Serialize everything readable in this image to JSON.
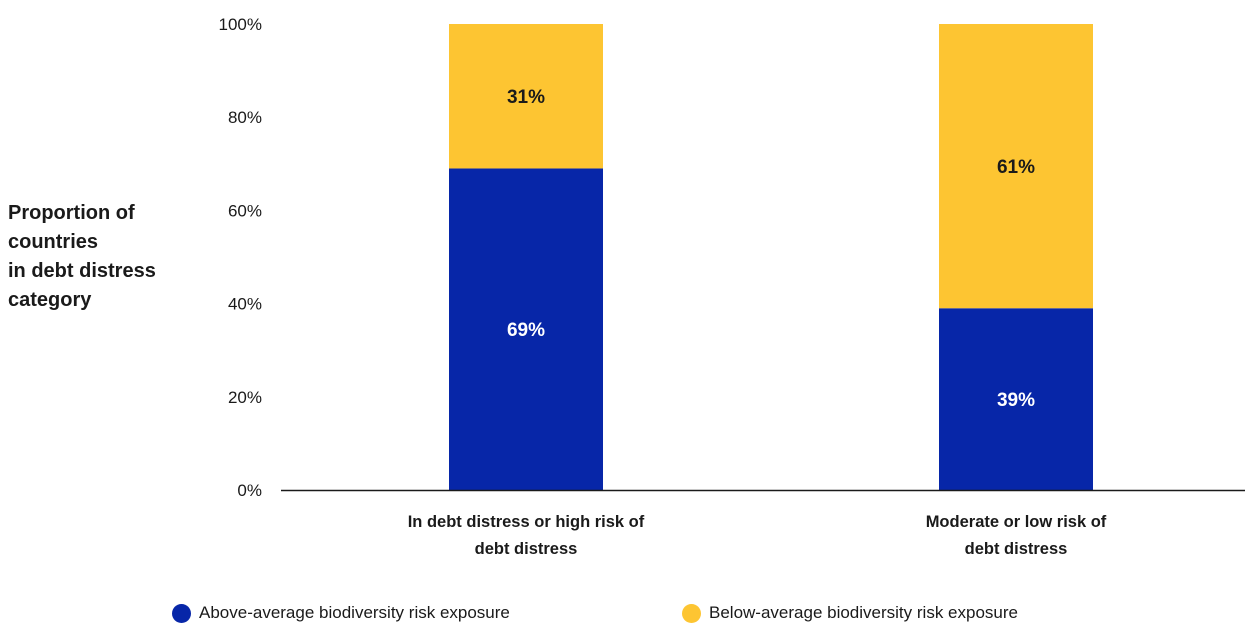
{
  "chart_data": {
    "type": "bar",
    "stacked": true,
    "categories": [
      [
        "In debt distress or high risk of",
        "debt distress"
      ],
      [
        "Moderate or low risk of",
        "debt distress"
      ]
    ],
    "series": [
      {
        "name": "Above-average biodiversity risk exposure",
        "values": [
          69,
          39
        ],
        "color": "#0726a8",
        "label_color": "#ffffff"
      },
      {
        "name": "Below-average biodiversity risk exposure",
        "values": [
          31,
          61
        ],
        "color": "#fdc532",
        "label_color": "#1a1a1a"
      }
    ],
    "value_labels": [
      [
        "69%",
        "39%"
      ],
      [
        "31%",
        "61%"
      ]
    ],
    "ylabel": [
      "Proportion of",
      "countries",
      "in debt distress",
      "category"
    ],
    "yticks": [
      0,
      20,
      40,
      60,
      80,
      100
    ],
    "ytick_labels": [
      "0%",
      "20%",
      "40%",
      "60%",
      "80%",
      "100%"
    ],
    "ylim": [
      0,
      100
    ],
    "grid": false,
    "legend_position": "bottom"
  }
}
